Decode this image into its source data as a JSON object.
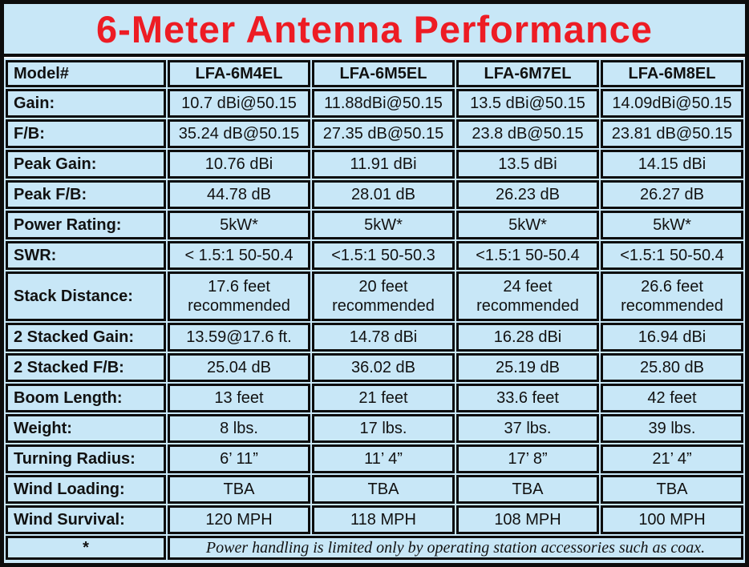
{
  "title": "6-Meter Antenna Performance",
  "colors": {
    "background_blue": "#c8e7f7",
    "accent_red": "#ed1c24",
    "border_black": "#0d0d0d"
  },
  "table": {
    "header": [
      "Model#",
      "LFA-6M4EL",
      "LFA-6M5EL",
      "LFA-6M7EL",
      "LFA-6M8EL"
    ],
    "rows": [
      {
        "label": "Gain:",
        "values": [
          "10.7 dBi@50.15",
          "11.88dBi@50.15",
          "13.5 dBi@50.15",
          "14.09dBi@50.15"
        ]
      },
      {
        "label": "F/B:",
        "values": [
          "35.24 dB@50.15",
          "27.35 dB@50.15",
          "23.8 dB@50.15",
          "23.81 dB@50.15"
        ]
      },
      {
        "label": "Peak Gain:",
        "values": [
          "10.76 dBi",
          "11.91 dBi",
          "13.5 dBi",
          "14.15 dBi"
        ]
      },
      {
        "label": "Peak F/B:",
        "values": [
          "44.78 dB",
          "28.01 dB",
          "26.23 dB",
          "26.27 dB"
        ]
      },
      {
        "label": "Power Rating:",
        "values": [
          "5kW*",
          "5kW*",
          "5kW*",
          "5kW*"
        ]
      },
      {
        "label": "SWR:",
        "values": [
          "< 1.5:1 50-50.4",
          "<1.5:1 50-50.3",
          "<1.5:1 50-50.4",
          "<1.5:1 50-50.4"
        ]
      },
      {
        "label": "Stack Distance:",
        "tall": true,
        "values": [
          "17.6 feet\nrecommended",
          "20 feet\nrecommended",
          "24 feet\nrecommended",
          "26.6 feet\nrecommended"
        ]
      },
      {
        "label": "2 Stacked Gain:",
        "values": [
          "13.59@17.6 ft.",
          "14.78 dBi",
          "16.28 dBi",
          "16.94 dBi"
        ]
      },
      {
        "label": "2 Stacked F/B:",
        "values": [
          "25.04 dB",
          "36.02 dB",
          "25.19 dB",
          "25.80 dB"
        ]
      },
      {
        "label": "Boom Length:",
        "values": [
          "13 feet",
          "21 feet",
          "33.6 feet",
          "42 feet"
        ]
      },
      {
        "label": "Weight:",
        "values": [
          "8 lbs.",
          "17 lbs.",
          "37 lbs.",
          "39 lbs."
        ]
      },
      {
        "label": "Turning Radius:",
        "values": [
          "6’ 11”",
          "11’ 4”",
          "17’ 8”",
          "21’ 4”"
        ]
      },
      {
        "label": "Wind Loading:",
        "values": [
          "TBA",
          "TBA",
          "TBA",
          "TBA"
        ]
      },
      {
        "label": "Wind Survival:",
        "values": [
          "120 MPH",
          "118 MPH",
          "108 MPH",
          "100 MPH"
        ]
      }
    ],
    "footnote": {
      "marker": "*",
      "text": "Power handling is limited only by operating station accessories such as coax."
    }
  }
}
